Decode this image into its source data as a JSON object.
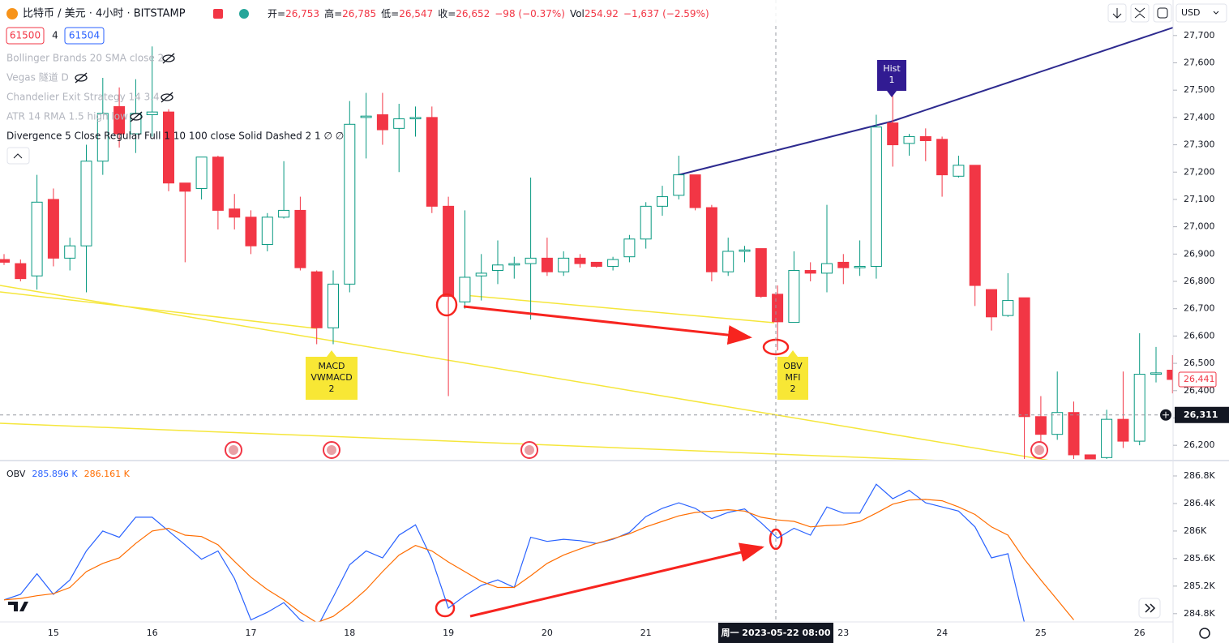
{
  "header": {
    "symbol": "比特币 / 美元 · 4小时 · BITSTAMP",
    "ohlc": [
      {
        "k": "开=",
        "v": "26,753"
      },
      {
        "k": "高=",
        "v": "26,785"
      },
      {
        "k": "低=",
        "v": "26,547"
      },
      {
        "k": "收=",
        "v": "26,652"
      },
      {
        "v": "−98 (−0.37%)"
      },
      {
        "k": "Vol",
        "v": "254.92"
      },
      {
        "v": "−1,637 (−2.59%)"
      }
    ],
    "inputs": [
      "61500",
      "4",
      "61504"
    ],
    "indicators": [
      "Bollinger Brands 20 SMA close 2",
      "Vegas 隧道 D",
      "Chandelier Exit Strategy 14 3.4",
      "ATR 14 RMA 1.5 high low",
      "Divergence 5 Close Regular Full 1 10 100 close Solid Dashed 2 1  ∅  ∅"
    ],
    "currency": "USD"
  },
  "chart_data": [
    {
      "type": "candlestick",
      "categories": [
        null,
        null,
        null,
        "15",
        null,
        null,
        null,
        null,
        null,
        "16",
        null,
        null,
        null,
        null,
        null,
        "17",
        null,
        null,
        null,
        null,
        null,
        "18",
        null,
        null,
        null,
        null,
        null,
        "19",
        null,
        null,
        null,
        null,
        null,
        "20",
        null,
        null,
        null,
        null,
        null,
        "21",
        null,
        null,
        null,
        null,
        null,
        null,
        null,
        null,
        null,
        null,
        null,
        "23",
        null,
        null,
        null,
        null,
        null,
        "24",
        null,
        null,
        null,
        null,
        null,
        "25",
        null,
        null,
        null,
        null,
        null,
        "26",
        null,
        null
      ],
      "open": [
        26880,
        26865,
        26820,
        27100,
        26885,
        26930,
        27240,
        27440,
        27340,
        27410,
        27420,
        27160,
        27140,
        27255,
        27065,
        27035,
        26935,
        27035,
        27060,
        26835,
        26630,
        26790,
        27400,
        27410,
        27360,
        27395,
        27400,
        27075,
        26725,
        26820,
        26840,
        26860,
        26865,
        26885,
        26835,
        26885,
        26870,
        26855,
        26890,
        26955,
        27075,
        27115,
        27190,
        27070,
        26835,
        26910,
        26920,
        26753,
        26650,
        26840,
        26830,
        26870,
        26850,
        26855,
        27380,
        27305,
        27330,
        27320,
        27185,
        27225,
        26770,
        26675,
        26740,
        26305,
        26240,
        26320,
        26165,
        26155,
        26295,
        26215,
        26460,
        26475
      ],
      "high": [
        26900,
        26880,
        27190,
        27140,
        26960,
        27300,
        27545,
        27510,
        27540,
        27660,
        27430,
        27160,
        27255,
        27260,
        27120,
        27060,
        27050,
        27240,
        27110,
        26840,
        26840,
        27460,
        27490,
        27490,
        27450,
        27440,
        27440,
        27110,
        27060,
        26900,
        26950,
        26890,
        27180,
        26960,
        26910,
        26900,
        26870,
        26890,
        26970,
        27090,
        27150,
        27260,
        27190,
        27080,
        26960,
        26930,
        26920,
        26785,
        26910,
        26870,
        27080,
        26900,
        26950,
        27410,
        27480,
        27340,
        27360,
        27330,
        27260,
        27225,
        26770,
        26830,
        26740,
        26380,
        26470,
        26360,
        26165,
        26330,
        26470,
        26610,
        26560,
        26530
      ],
      "low": [
        26860,
        26800,
        26770,
        26855,
        26840,
        26760,
        27190,
        27290,
        27270,
        27330,
        27130,
        26870,
        27100,
        26990,
        26990,
        26900,
        26910,
        27030,
        26840,
        26570,
        26570,
        26760,
        27250,
        27300,
        27200,
        27330,
        27050,
        26380,
        26700,
        26730,
        26790,
        26810,
        26660,
        26820,
        26820,
        26850,
        26850,
        26840,
        26870,
        26920,
        27040,
        27100,
        27060,
        26800,
        26820,
        26870,
        26740,
        26547,
        26650,
        26800,
        26760,
        26790,
        26820,
        26810,
        27220,
        27260,
        27240,
        27110,
        27180,
        26710,
        26620,
        26670,
        26150,
        26150,
        26220,
        26150,
        26150,
        26150,
        26190,
        26200,
        26430,
        26390
      ],
      "close": [
        26870,
        26810,
        27090,
        26885,
        26930,
        27240,
        27415,
        27340,
        27415,
        27420,
        27160,
        27130,
        27255,
        27060,
        27035,
        26930,
        27035,
        27060,
        26850,
        26630,
        26790,
        27375,
        27405,
        27355,
        27395,
        27400,
        27075,
        26745,
        26815,
        26830,
        26860,
        26865,
        26885,
        26835,
        26885,
        26865,
        26855,
        26880,
        26955,
        27075,
        27110,
        27190,
        27070,
        26835,
        26910,
        26915,
        26745,
        26652,
        26840,
        26830,
        26865,
        26850,
        26855,
        27365,
        27300,
        27330,
        27315,
        27190,
        27225,
        26785,
        26670,
        26730,
        26305,
        26240,
        26320,
        26165,
        26150,
        26295,
        26215,
        26460,
        26465,
        26441
      ],
      "up_color": "#089981",
      "down_color": "#f23645",
      "ylim": [
        26150,
        27830
      ],
      "yticks": [
        {
          "value": 27700,
          "label": "27,700"
        },
        {
          "value": 27600,
          "label": "27,600"
        },
        {
          "value": 27500,
          "label": "27,500"
        },
        {
          "value": 27400,
          "label": "27,400"
        },
        {
          "value": 27300,
          "label": "27,300"
        },
        {
          "value": 27200,
          "label": "27,200"
        },
        {
          "value": 27100,
          "label": "27,100"
        },
        {
          "value": 27000,
          "label": "27,000"
        },
        {
          "value": 26900,
          "label": "26,900"
        },
        {
          "value": 26800,
          "label": "26,800"
        },
        {
          "value": 26700,
          "label": "26,700"
        },
        {
          "value": 26600,
          "label": "26,600"
        },
        {
          "value": 26500,
          "label": "26,500"
        },
        {
          "value": 26400,
          "label": "26,400"
        },
        {
          "value": 26300,
          "label": "26,300"
        },
        {
          "value": 26200,
          "label": "26,200"
        }
      ],
      "grid": false,
      "last_price_label": "26,441",
      "crosshair_price": 26311,
      "crosshair_price_label": "26,311",
      "crosshair_time_label": "周一  2023-05-22   08:00",
      "annotations": [
        {
          "lines": [
            "Hist",
            "1"
          ]
        },
        {
          "lines": [
            "MACD",
            "VWMACD",
            "2"
          ]
        },
        {
          "lines": [
            "OBV",
            "MFI",
            "2"
          ]
        }
      ]
    },
    {
      "type": "line",
      "title": "OBV",
      "series": [
        {
          "color": "#2962ff",
          "value_label": "285.896 K",
          "values": [
            285.0,
            285.08,
            285.38,
            285.08,
            285.29,
            285.71,
            286.0,
            285.91,
            286.2,
            286.2,
            286.0,
            285.8,
            285.59,
            285.71,
            285.31,
            284.71,
            284.82,
            284.96,
            284.71,
            284.59,
            285.04,
            285.51,
            285.71,
            285.61,
            285.94,
            286.09,
            285.59,
            284.88,
            285.06,
            285.21,
            285.29,
            285.18,
            285.91,
            285.85,
            285.88,
            285.86,
            285.82,
            285.88,
            285.98,
            286.21,
            286.33,
            286.41,
            286.33,
            286.18,
            286.27,
            286.32,
            286.12,
            285.896,
            286.04,
            285.94,
            286.35,
            286.26,
            286.26,
            286.68,
            286.47,
            286.59,
            286.41,
            286.35,
            286.29,
            286.06,
            285.61,
            285.67,
            284.67,
            null,
            null,
            null,
            null,
            null,
            null,
            null,
            null,
            null
          ]
        },
        {
          "color": "#ff6d00",
          "value_label": "286.161 K",
          "values": [
            285.0,
            285.02,
            285.06,
            285.09,
            285.18,
            285.41,
            285.53,
            285.61,
            285.82,
            286.0,
            286.04,
            285.94,
            285.92,
            285.8,
            285.56,
            285.33,
            285.15,
            285.0,
            284.82,
            284.67,
            284.76,
            284.94,
            285.15,
            285.41,
            285.65,
            285.79,
            285.71,
            285.55,
            285.41,
            285.27,
            285.18,
            285.18,
            285.35,
            285.53,
            285.65,
            285.74,
            285.82,
            285.89,
            285.96,
            286.06,
            286.14,
            286.22,
            286.27,
            286.29,
            286.31,
            286.29,
            286.2,
            286.161,
            286.14,
            286.06,
            286.08,
            286.09,
            286.14,
            286.26,
            286.39,
            286.45,
            286.46,
            286.44,
            286.35,
            286.24,
            286.06,
            285.94,
            285.59,
            285.29,
            285.0,
            284.71,
            null,
            null,
            null,
            null,
            null,
            null
          ]
        }
      ],
      "ylim": [
        284.68,
        287.0
      ],
      "yticks": [
        {
          "value": 286.8,
          "label": "286.8K"
        },
        {
          "value": 286.4,
          "label": "286.4K"
        },
        {
          "value": 286,
          "label": "286K"
        },
        {
          "value": 285.6,
          "label": "285.6K"
        },
        {
          "value": 285.2,
          "label": "285.2K"
        },
        {
          "value": 284.8,
          "label": "284.8K"
        }
      ],
      "grid": false
    }
  ]
}
